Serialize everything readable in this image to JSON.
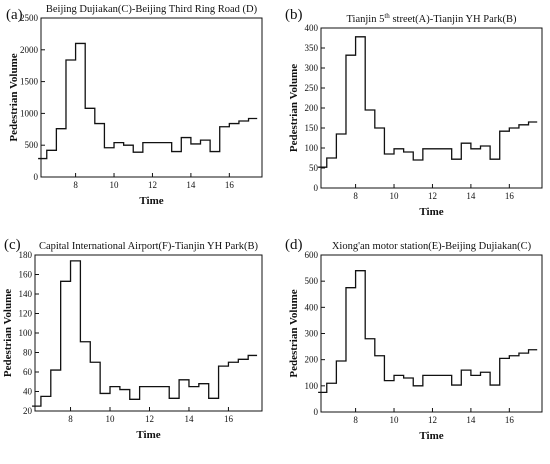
{
  "chart_data": [
    {
      "type": "line",
      "step": true,
      "panel": "(a)",
      "title": "Beijing Dujiakan(C)-Beijing Third Ring Road (D)",
      "xlabel": "Time",
      "ylabel": "Pedestrian Volume",
      "xlim": [
        6.2,
        17.7
      ],
      "ylim": [
        0,
        2500
      ],
      "xticks": [
        8,
        10,
        12,
        14,
        16
      ],
      "yticks": [
        0,
        500,
        1000,
        1500,
        2000,
        2500
      ],
      "x": [
        6.25,
        6.75,
        7.25,
        7.75,
        8.25,
        8.75,
        9.25,
        9.75,
        10.25,
        10.75,
        11.25,
        11.75,
        12.25,
        12.75,
        13.25,
        13.75,
        14.25,
        14.75,
        15.25,
        15.75,
        16.25,
        16.75,
        17.25
      ],
      "values": [
        290,
        420,
        760,
        1840,
        2100,
        1080,
        840,
        460,
        540,
        500,
        390,
        540,
        540,
        540,
        400,
        620,
        520,
        580,
        400,
        790,
        840,
        880,
        920
      ]
    },
    {
      "type": "line",
      "step": true,
      "panel": "(b)",
      "title": "Tianjin 5th street(A)-Tianjin YH Park(B)",
      "xlabel": "Time",
      "ylabel": "Pedestrian Volume",
      "xlim": [
        6.2,
        17.7
      ],
      "ylim": [
        0,
        400
      ],
      "xticks": [
        8,
        10,
        12,
        14,
        16
      ],
      "yticks": [
        0,
        50,
        100,
        150,
        200,
        250,
        300,
        350,
        400
      ],
      "x": [
        6.25,
        6.75,
        7.25,
        7.75,
        8.25,
        8.75,
        9.25,
        9.75,
        10.25,
        10.75,
        11.25,
        11.75,
        12.25,
        12.75,
        13.25,
        13.75,
        14.25,
        14.75,
        15.25,
        15.75,
        16.25,
        16.75,
        17.25
      ],
      "values": [
        52,
        75,
        135,
        332,
        378,
        195,
        150,
        85,
        98,
        90,
        70,
        98,
        98,
        98,
        72,
        112,
        98,
        105,
        72,
        142,
        150,
        158,
        165
      ]
    },
    {
      "type": "line",
      "step": true,
      "panel": "(c)",
      "title": "Capital International Airport(F)-Tianjin YH Park(B)",
      "xlabel": "Time",
      "ylabel": "Pedestrian Volume",
      "xlim": [
        6.2,
        17.7
      ],
      "ylim": [
        20,
        180
      ],
      "xticks": [
        8,
        10,
        12,
        14,
        16
      ],
      "yticks": [
        20,
        40,
        60,
        80,
        100,
        120,
        140,
        160,
        180
      ],
      "x": [
        6.25,
        6.75,
        7.25,
        7.75,
        8.25,
        8.75,
        9.25,
        9.75,
        10.25,
        10.75,
        11.25,
        11.75,
        12.25,
        12.75,
        13.25,
        13.75,
        14.25,
        14.75,
        15.25,
        15.75,
        16.25,
        16.75,
        17.25
      ],
      "values": [
        25,
        35,
        62,
        153,
        174,
        91,
        70,
        38,
        45,
        42,
        32,
        45,
        45,
        45,
        33,
        52,
        45,
        48,
        33,
        66,
        70,
        73,
        77
      ]
    },
    {
      "type": "line",
      "step": true,
      "panel": "(d)",
      "title": "Xiong'an motor station(E)-Beijing Dujiakan(C)",
      "xlabel": "Time",
      "ylabel": "Pedestrian Volume",
      "xlim": [
        6.2,
        17.7
      ],
      "ylim": [
        0,
        600
      ],
      "xticks": [
        8,
        10,
        12,
        14,
        16
      ],
      "yticks": [
        0,
        100,
        200,
        300,
        400,
        500,
        600
      ],
      "x": [
        6.25,
        6.75,
        7.25,
        7.75,
        8.25,
        8.75,
        9.25,
        9.75,
        10.25,
        10.75,
        11.25,
        11.75,
        12.25,
        12.75,
        13.25,
        13.75,
        14.25,
        14.75,
        15.25,
        15.75,
        16.25,
        16.75,
        17.25
      ],
      "values": [
        75,
        110,
        195,
        475,
        540,
        280,
        215,
        120,
        140,
        130,
        100,
        140,
        140,
        140,
        103,
        160,
        140,
        152,
        103,
        205,
        215,
        225,
        238
      ]
    }
  ]
}
